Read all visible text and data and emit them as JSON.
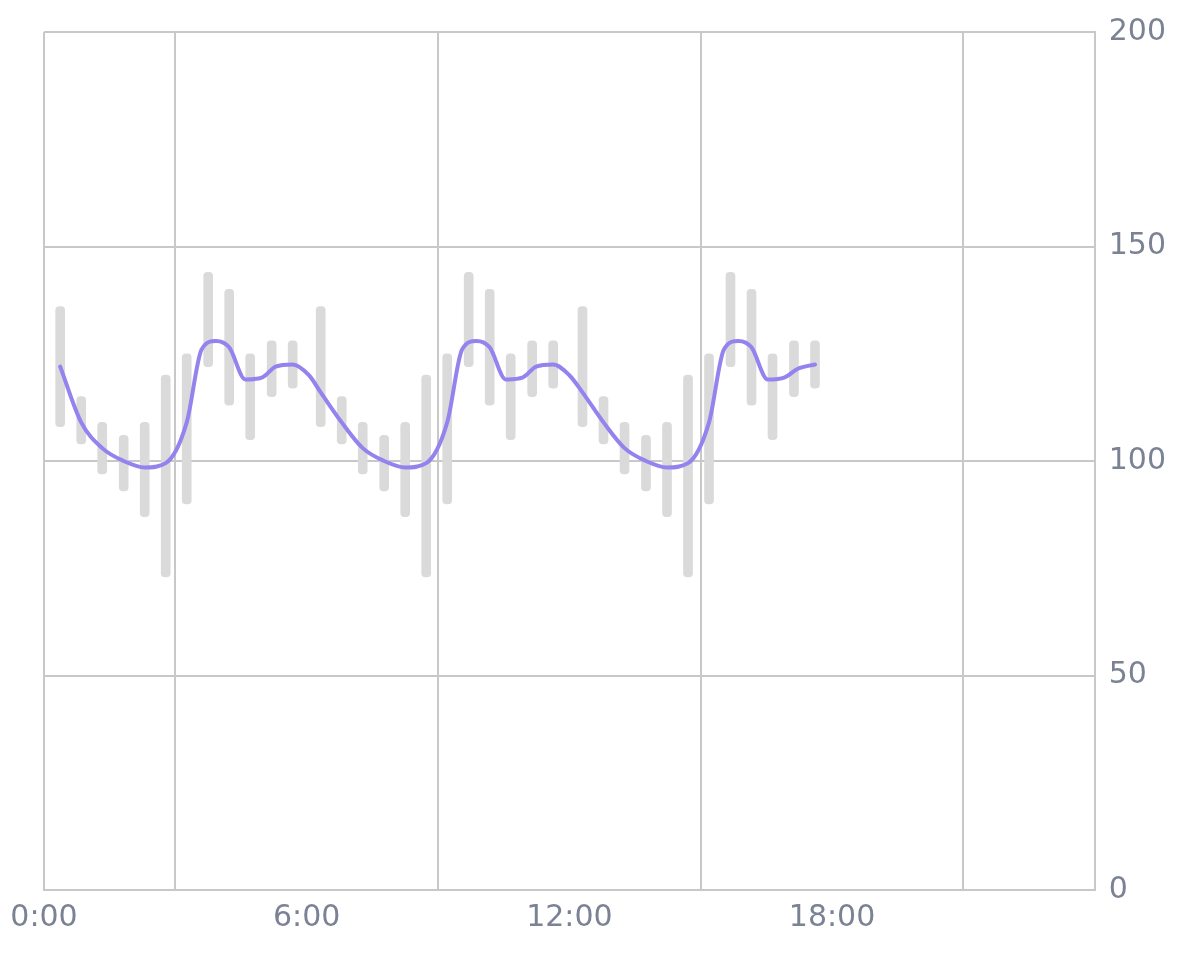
{
  "chart_data": {
    "type": "bar",
    "xlim": [
      0,
      24
    ],
    "xticks": [
      {
        "value": 0,
        "label": "0:00"
      },
      {
        "value": 6,
        "label": "6:00"
      },
      {
        "value": 12,
        "label": "12:00"
      },
      {
        "value": 18,
        "label": "18:00"
      }
    ],
    "ylim": [
      0,
      200
    ],
    "yticks": [
      0,
      50,
      100,
      150,
      200
    ],
    "grid": true,
    "legend": false,
    "marker": "none",
    "series": [
      {
        "color": "#dadada",
        "x": [
          0.37,
          0.85,
          1.33,
          1.82,
          2.3,
          2.78,
          3.26,
          3.75,
          4.23,
          4.71,
          5.2,
          5.68,
          6.32,
          6.8,
          7.28,
          7.77,
          8.25,
          8.73,
          9.21,
          9.7,
          10.18,
          10.66,
          11.15,
          11.63,
          12.3,
          12.78,
          13.26,
          13.75,
          14.23,
          14.71,
          15.19,
          15.68,
          16.16,
          16.64,
          17.13,
          17.61
        ],
        "base": [
          108,
          104,
          97,
          93,
          87,
          73,
          90,
          122,
          113,
          105,
          115,
          117,
          108,
          104,
          97,
          93,
          87,
          73,
          90,
          122,
          113,
          105,
          115,
          117,
          108,
          104,
          97,
          93,
          87,
          73,
          90,
          122,
          113,
          105,
          115,
          117
        ],
        "values": [
          28,
          11,
          12,
          13,
          22,
          47,
          35,
          22,
          27,
          20,
          13,
          11,
          28,
          11,
          12,
          13,
          22,
          47,
          35,
          22,
          27,
          20,
          13,
          11,
          28,
          11,
          12,
          13,
          22,
          47,
          35,
          22,
          27,
          20,
          13,
          11
        ]
      },
      {
        "type": "line",
        "color": "#9283ee",
        "x": [
          0.37,
          0.85,
          1.33,
          1.82,
          2.3,
          2.78,
          3.26,
          3.6,
          3.93,
          4.23,
          4.6,
          4.99,
          5.29,
          5.68,
          6.05,
          6.32,
          6.8,
          7.28,
          7.77,
          8.25,
          8.73,
          9.21,
          9.55,
          9.88,
          10.18,
          10.55,
          10.94,
          11.24,
          11.63,
          12.0,
          12.3,
          12.78,
          13.26,
          13.75,
          14.23,
          14.71,
          15.19,
          15.53,
          15.86,
          16.16,
          16.53,
          16.92,
          17.22,
          17.61
        ],
        "values": [
          122,
          109,
          103,
          100,
          98.5,
          99.5,
          109,
          126,
          128,
          126.5,
          119,
          119.5,
          122,
          122.5,
          120,
          116,
          109,
          103,
          100,
          98.5,
          99.5,
          109,
          126,
          128,
          126.5,
          119,
          119.5,
          122,
          122.5,
          120,
          116,
          109,
          103,
          100,
          98.5,
          99.5,
          109,
          126,
          128,
          126.5,
          119,
          119.5,
          121.5,
          122.5
        ]
      }
    ]
  }
}
